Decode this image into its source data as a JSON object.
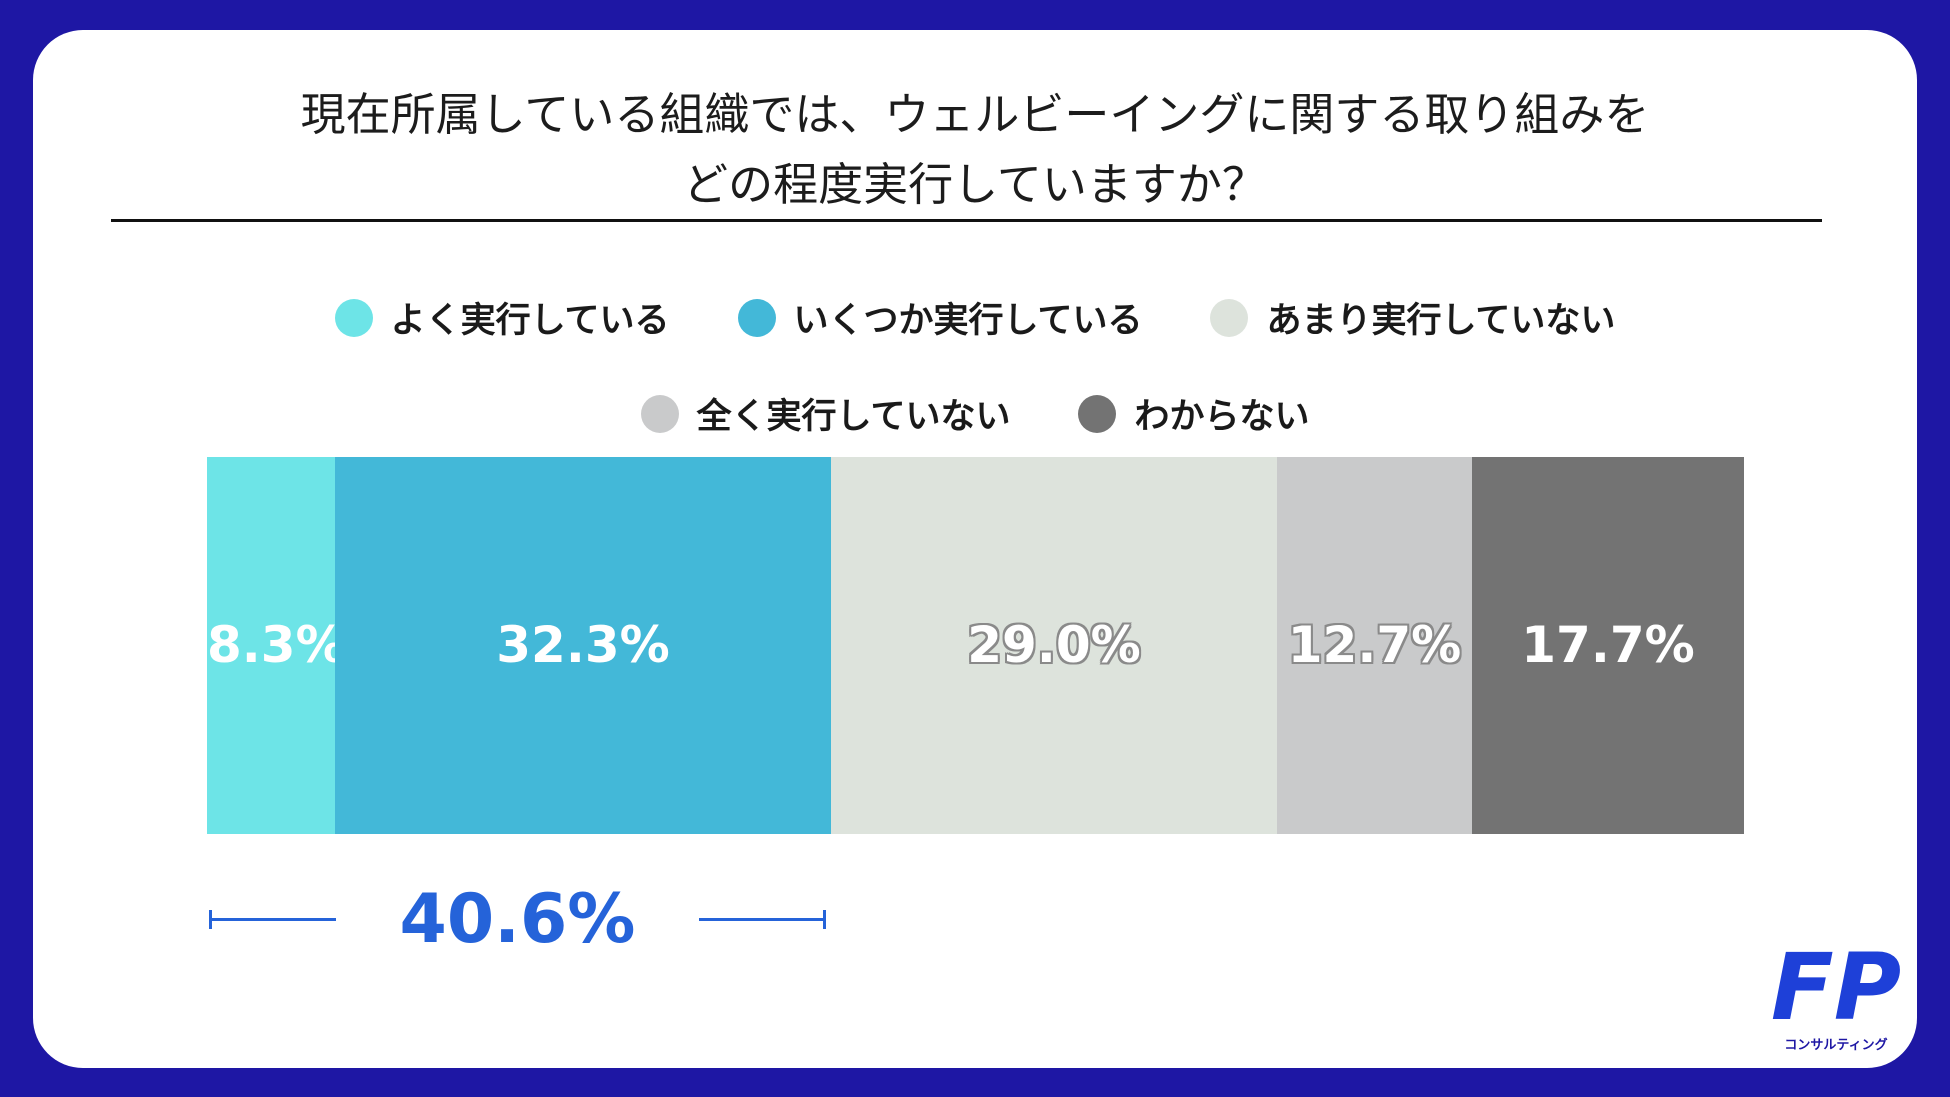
{
  "title_line1": "現在所属している組織では、ウェルビーイングに関する取り組みを",
  "title_line2": "どの程度実行していますか？",
  "chart_data": {
    "type": "bar",
    "orientation": "horizontal-stacked-100",
    "categories": [
      "よく実行している",
      "いくつか実行している",
      "あまり実行していない",
      "全く実行していない",
      "わからない"
    ],
    "values": [
      8.3,
      32.3,
      29.0,
      12.7,
      17.7
    ],
    "value_labels": [
      "8.3%",
      "32.3%",
      "29.0%",
      "12.7%",
      "17.7%"
    ],
    "colors": [
      "#6de4e7",
      "#43b8d8",
      "#dde3dc",
      "#c9cacb",
      "#737373"
    ],
    "legend_position": "top",
    "annotation": {
      "spans": [
        "よく実行している",
        "いくつか実行している"
      ],
      "value": 40.6,
      "label": "40.6%"
    }
  },
  "logo": {
    "text": "FP",
    "subtext": "コンサルティング"
  }
}
